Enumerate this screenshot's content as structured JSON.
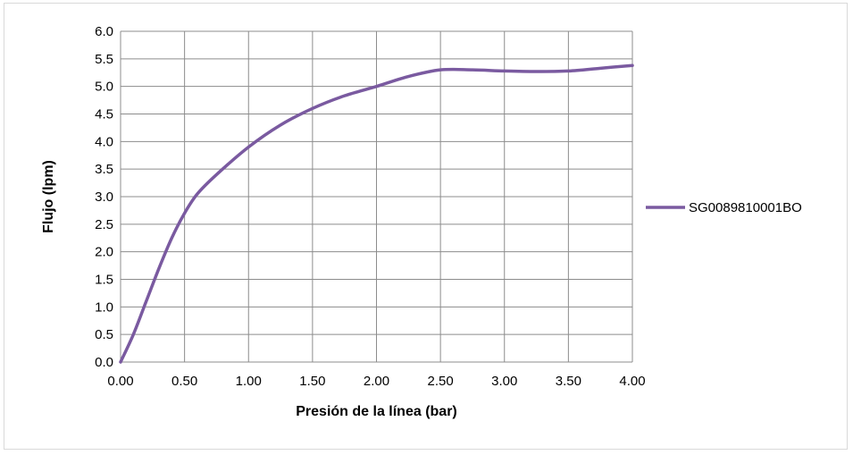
{
  "chart_data": {
    "type": "line",
    "title": "",
    "xlabel": "Presión de la línea (bar)",
    "ylabel": "Flujo (lpm)",
    "xlim": [
      0,
      4
    ],
    "ylim": [
      0,
      6
    ],
    "x_ticks": [
      "0.00",
      "0.50",
      "1.00",
      "1.50",
      "2.00",
      "2.50",
      "3.00",
      "3.50",
      "4.00"
    ],
    "y_ticks": [
      "0.0",
      "0.5",
      "1.0",
      "1.5",
      "2.0",
      "2.5",
      "3.0",
      "3.5",
      "4.0",
      "4.5",
      "5.0",
      "5.5",
      "6.0"
    ],
    "grid": true,
    "legend_position": "right",
    "smooth": true,
    "series": [
      {
        "name": "SG0089810001BO",
        "color": "#7a5aa0",
        "x": [
          0.0,
          0.1,
          0.2,
          0.3,
          0.4,
          0.5,
          0.6,
          0.75,
          1.0,
          1.25,
          1.5,
          1.75,
          2.0,
          2.25,
          2.5,
          2.75,
          3.0,
          3.25,
          3.5,
          3.75,
          4.0
        ],
        "y": [
          0.0,
          0.5,
          1.1,
          1.7,
          2.25,
          2.7,
          3.05,
          3.4,
          3.9,
          4.3,
          4.6,
          4.83,
          5.0,
          5.18,
          5.3,
          5.3,
          5.28,
          5.27,
          5.28,
          5.33,
          5.38
        ]
      }
    ]
  }
}
